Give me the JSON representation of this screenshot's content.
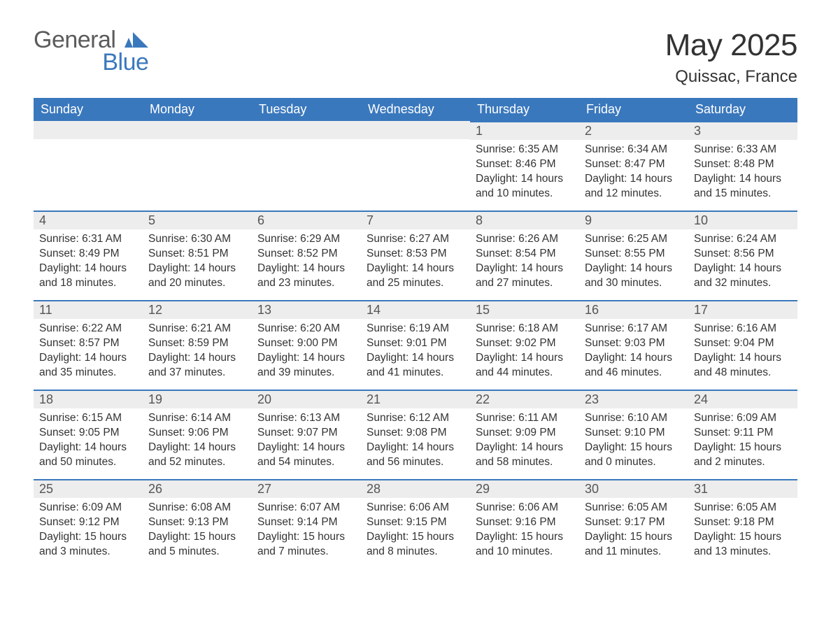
{
  "logo": {
    "word1": "General",
    "word2": "Blue",
    "grey": "#5b5b5b",
    "blue": "#3a78bd"
  },
  "title": "May 2025",
  "location": "Quissac, France",
  "colors": {
    "header_bg": "#3a78bd",
    "header_fg": "#ffffff",
    "daynum_bg": "#ededed",
    "daynum_border": "#3a78bd",
    "text": "#333333",
    "bg": "#ffffff"
  },
  "days_of_week": [
    "Sunday",
    "Monday",
    "Tuesday",
    "Wednesday",
    "Thursday",
    "Friday",
    "Saturday"
  ],
  "weeks": [
    [
      null,
      null,
      null,
      null,
      {
        "n": "1",
        "sr": "6:35 AM",
        "ss": "8:46 PM",
        "dl": "14 hours and 10 minutes."
      },
      {
        "n": "2",
        "sr": "6:34 AM",
        "ss": "8:47 PM",
        "dl": "14 hours and 12 minutes."
      },
      {
        "n": "3",
        "sr": "6:33 AM",
        "ss": "8:48 PM",
        "dl": "14 hours and 15 minutes."
      }
    ],
    [
      {
        "n": "4",
        "sr": "6:31 AM",
        "ss": "8:49 PM",
        "dl": "14 hours and 18 minutes."
      },
      {
        "n": "5",
        "sr": "6:30 AM",
        "ss": "8:51 PM",
        "dl": "14 hours and 20 minutes."
      },
      {
        "n": "6",
        "sr": "6:29 AM",
        "ss": "8:52 PM",
        "dl": "14 hours and 23 minutes."
      },
      {
        "n": "7",
        "sr": "6:27 AM",
        "ss": "8:53 PM",
        "dl": "14 hours and 25 minutes."
      },
      {
        "n": "8",
        "sr": "6:26 AM",
        "ss": "8:54 PM",
        "dl": "14 hours and 27 minutes."
      },
      {
        "n": "9",
        "sr": "6:25 AM",
        "ss": "8:55 PM",
        "dl": "14 hours and 30 minutes."
      },
      {
        "n": "10",
        "sr": "6:24 AM",
        "ss": "8:56 PM",
        "dl": "14 hours and 32 minutes."
      }
    ],
    [
      {
        "n": "11",
        "sr": "6:22 AM",
        "ss": "8:57 PM",
        "dl": "14 hours and 35 minutes."
      },
      {
        "n": "12",
        "sr": "6:21 AM",
        "ss": "8:59 PM",
        "dl": "14 hours and 37 minutes."
      },
      {
        "n": "13",
        "sr": "6:20 AM",
        "ss": "9:00 PM",
        "dl": "14 hours and 39 minutes."
      },
      {
        "n": "14",
        "sr": "6:19 AM",
        "ss": "9:01 PM",
        "dl": "14 hours and 41 minutes."
      },
      {
        "n": "15",
        "sr": "6:18 AM",
        "ss": "9:02 PM",
        "dl": "14 hours and 44 minutes."
      },
      {
        "n": "16",
        "sr": "6:17 AM",
        "ss": "9:03 PM",
        "dl": "14 hours and 46 minutes."
      },
      {
        "n": "17",
        "sr": "6:16 AM",
        "ss": "9:04 PM",
        "dl": "14 hours and 48 minutes."
      }
    ],
    [
      {
        "n": "18",
        "sr": "6:15 AM",
        "ss": "9:05 PM",
        "dl": "14 hours and 50 minutes."
      },
      {
        "n": "19",
        "sr": "6:14 AM",
        "ss": "9:06 PM",
        "dl": "14 hours and 52 minutes."
      },
      {
        "n": "20",
        "sr": "6:13 AM",
        "ss": "9:07 PM",
        "dl": "14 hours and 54 minutes."
      },
      {
        "n": "21",
        "sr": "6:12 AM",
        "ss": "9:08 PM",
        "dl": "14 hours and 56 minutes."
      },
      {
        "n": "22",
        "sr": "6:11 AM",
        "ss": "9:09 PM",
        "dl": "14 hours and 58 minutes."
      },
      {
        "n": "23",
        "sr": "6:10 AM",
        "ss": "9:10 PM",
        "dl": "15 hours and 0 minutes."
      },
      {
        "n": "24",
        "sr": "6:09 AM",
        "ss": "9:11 PM",
        "dl": "15 hours and 2 minutes."
      }
    ],
    [
      {
        "n": "25",
        "sr": "6:09 AM",
        "ss": "9:12 PM",
        "dl": "15 hours and 3 minutes."
      },
      {
        "n": "26",
        "sr": "6:08 AM",
        "ss": "9:13 PM",
        "dl": "15 hours and 5 minutes."
      },
      {
        "n": "27",
        "sr": "6:07 AM",
        "ss": "9:14 PM",
        "dl": "15 hours and 7 minutes."
      },
      {
        "n": "28",
        "sr": "6:06 AM",
        "ss": "9:15 PM",
        "dl": "15 hours and 8 minutes."
      },
      {
        "n": "29",
        "sr": "6:06 AM",
        "ss": "9:16 PM",
        "dl": "15 hours and 10 minutes."
      },
      {
        "n": "30",
        "sr": "6:05 AM",
        "ss": "9:17 PM",
        "dl": "15 hours and 11 minutes."
      },
      {
        "n": "31",
        "sr": "6:05 AM",
        "ss": "9:18 PM",
        "dl": "15 hours and 13 minutes."
      }
    ]
  ],
  "labels": {
    "sunrise": "Sunrise: ",
    "sunset": "Sunset: ",
    "daylight": "Daylight: "
  }
}
